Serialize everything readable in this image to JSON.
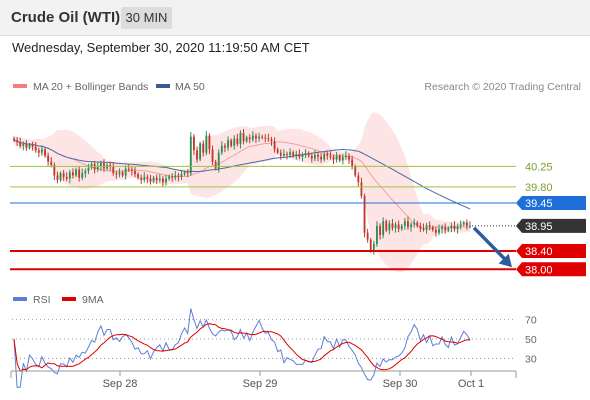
{
  "header": {
    "title": "Crude Oil (WTI)",
    "timeframe": "30 MIN"
  },
  "datetime": "Wednesday, September 30, 2020 11:19:50 AM CET",
  "legend": {
    "items": [
      {
        "label": "MA 20 + Bollinger Bands",
        "color": "#f08080"
      },
      {
        "label": "MA 50",
        "color": "#3a5b96"
      }
    ],
    "credit": "Research © 2020 Trading Central"
  },
  "colors": {
    "up_candle": "#2e8b57",
    "down_candle": "#c0392b",
    "bollinger_fill": "#fde0e0",
    "ma20": "#f4a0a0",
    "ma50": "#4a6aa8",
    "support": "#e00000",
    "pivot": "#1e6fd9",
    "resistance": "#9bc53d",
    "arrow": "#2e5c9e",
    "last_price": "#333333",
    "rsi": "#5b7fd6",
    "rsi_ma": "#e00000"
  },
  "chart_data": [
    {
      "type": "candlestick",
      "x_ticks": [
        "Sep 28",
        "Sep 29",
        "Sep 30",
        "Oct 1"
      ],
      "ylim": [
        37.7,
        41.7
      ],
      "levels": [
        {
          "label": "40.25",
          "value": 40.25,
          "kind": "resistance"
        },
        {
          "label": "39.80",
          "value": 39.8,
          "kind": "resistance"
        },
        {
          "label": "39.45",
          "value": 39.45,
          "kind": "pivot"
        },
        {
          "label": "38.40",
          "value": 38.4,
          "kind": "support"
        },
        {
          "label": "38.00",
          "value": 38.0,
          "kind": "support"
        }
      ],
      "last_price": {
        "label": "38.95",
        "value": 38.95
      },
      "close": [
        40.82,
        40.78,
        40.7,
        40.74,
        40.66,
        40.72,
        40.68,
        40.6,
        40.55,
        40.62,
        40.48,
        40.35,
        40.28,
        40.05,
        39.95,
        40.1,
        40.02,
        39.98,
        40.12,
        40.05,
        40.18,
        40.0,
        40.1,
        40.15,
        40.22,
        40.3,
        40.18,
        40.25,
        40.32,
        40.2,
        40.28,
        40.24,
        40.1,
        40.08,
        40.12,
        40.05,
        40.2,
        40.18,
        40.15,
        40.08,
        40.0,
        39.95,
        40.02,
        39.98,
        39.92,
        40.0,
        39.95,
        39.98,
        39.9,
        39.98,
        40.03,
        40.0,
        40.05,
        40.02,
        40.08,
        40.12,
        40.1,
        40.9,
        40.6,
        40.4,
        40.75,
        40.55,
        40.92,
        40.62,
        40.35,
        40.2,
        40.55,
        40.7,
        40.66,
        40.82,
        40.7,
        40.86,
        40.74,
        40.98,
        40.8,
        40.88,
        40.84,
        40.92,
        40.86,
        40.9,
        40.88,
        40.86,
        40.84,
        40.8,
        40.62,
        40.55,
        40.48,
        40.52,
        40.5,
        40.56,
        40.48,
        40.52,
        40.46,
        40.5,
        40.54,
        40.48,
        40.42,
        40.5,
        40.46,
        40.4,
        40.52,
        40.48,
        40.45,
        40.4,
        40.48,
        40.38,
        40.45,
        40.48,
        40.4,
        40.25,
        40.05,
        39.9,
        39.6,
        38.8,
        38.65,
        38.4,
        38.55,
        38.95,
        38.75,
        39.05,
        38.85,
        39.0,
        38.9,
        38.98,
        38.88,
        38.95,
        39.05,
        38.92,
        38.98,
        39.02,
        38.95,
        38.9,
        38.88,
        38.96,
        38.92,
        38.86,
        38.8,
        38.88,
        38.92,
        38.85,
        38.9,
        38.95,
        38.88,
        38.94,
        38.98,
        39.02,
        38.95,
        38.95
      ],
      "resistance_levels": [
        "40.25",
        "39.80"
      ],
      "pivot_level": "39.45",
      "support_levels": [
        "38.40",
        "38.00"
      ],
      "ma_period": 20,
      "ma_long_period": 50,
      "bollinger_width": 2
    },
    {
      "type": "line",
      "title": "RSI",
      "series": [
        {
          "name": "RSI",
          "color": "#5b7fd6"
        },
        {
          "name": "9MA",
          "color": "#e00000"
        }
      ],
      "levels": [
        {
          "label": "70",
          "value": 70
        },
        {
          "label": "50",
          "value": 50
        },
        {
          "label": "30",
          "value": 30
        }
      ],
      "ylim": [
        20,
        80
      ],
      "rsi_period": 14,
      "rsi_ma_period": 9
    }
  ]
}
